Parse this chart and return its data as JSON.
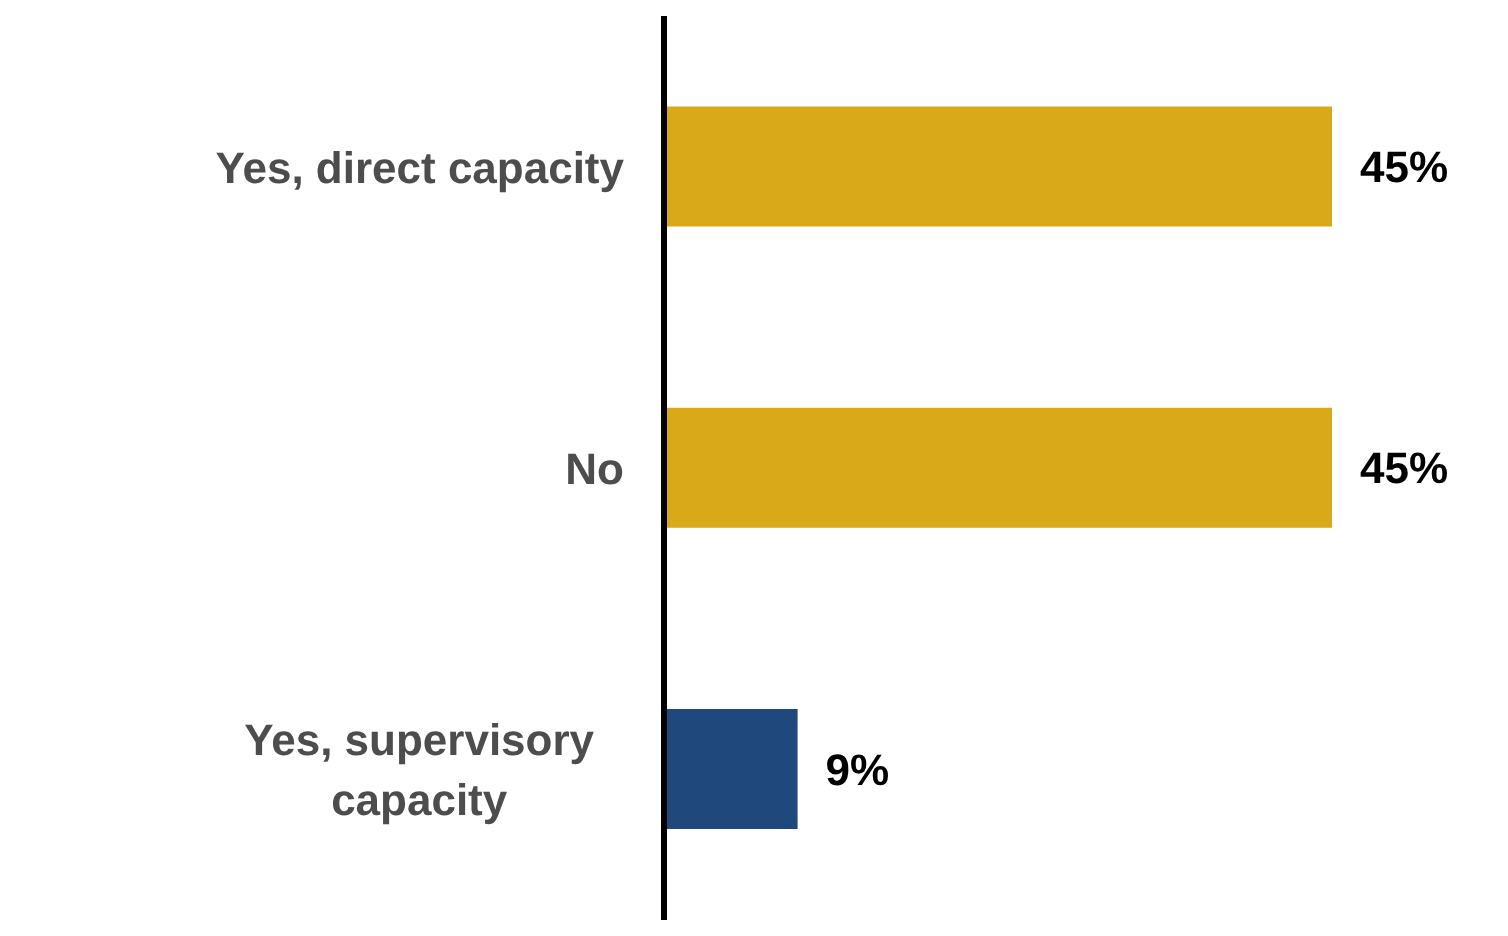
{
  "chart_data": {
    "type": "bar",
    "orientation": "horizontal",
    "categories": [
      "Yes, direct capacity",
      "No",
      "Yes, supervisory capacity"
    ],
    "values": [
      45,
      45,
      9
    ],
    "value_labels": [
      "45%",
      "45%",
      "9%"
    ],
    "colors": [
      "#d9a919",
      "#d9a919",
      "#1f497d"
    ]
  }
}
